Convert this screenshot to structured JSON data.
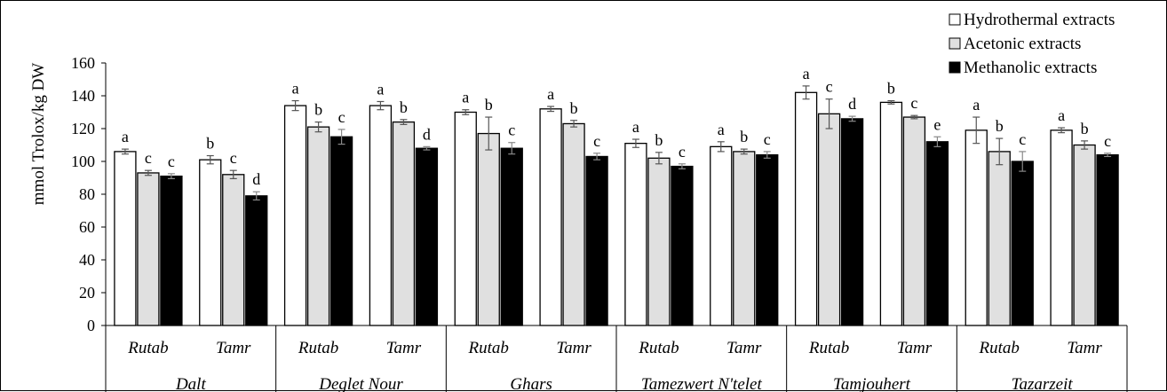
{
  "chart_data": {
    "type": "bar",
    "ylabel": "mmol Trolox/kg DW",
    "ylim": [
      0,
      160
    ],
    "yticks": [
      0,
      20,
      40,
      60,
      80,
      100,
      120,
      140,
      160
    ],
    "grid": false,
    "legend_position": "top-right",
    "groups": [
      {
        "name": "Dalt",
        "subcategories": [
          "Rutab",
          "Tamr"
        ]
      },
      {
        "name": "Deglet Nour",
        "subcategories": [
          "Rutab",
          "Tamr"
        ]
      },
      {
        "name": "Ghars",
        "subcategories": [
          "Rutab",
          "Tamr"
        ]
      },
      {
        "name": "Tamezwert N'telet",
        "subcategories": [
          "Rutab",
          "Tamr"
        ]
      },
      {
        "name": "Tamjouhert",
        "subcategories": [
          "Rutab",
          "Tamr"
        ]
      },
      {
        "name": "Tazarzeit",
        "subcategories": [
          "Rutab",
          "Tamr"
        ]
      }
    ],
    "series": [
      {
        "name": "Hydrothermal extracts",
        "color": "#ffffff",
        "values": [
          106,
          101,
          134,
          134,
          130,
          132,
          111,
          109,
          142,
          136,
          119,
          119
        ],
        "errors": [
          1.5,
          2.5,
          3,
          2.5,
          1.5,
          1.5,
          2.5,
          3,
          4,
          1,
          8,
          1.5
        ],
        "letters": [
          "a",
          "b",
          "a",
          "a",
          "a",
          "a",
          "a",
          "a",
          "a",
          "b",
          "a",
          "a"
        ]
      },
      {
        "name": "Acetonic extracts",
        "color": "#e0e0e0",
        "values": [
          93,
          92,
          121,
          124,
          117,
          123,
          102,
          106,
          129,
          127,
          106,
          110
        ],
        "errors": [
          1.5,
          2.5,
          3,
          1.5,
          10,
          2,
          3.5,
          1.5,
          9,
          1,
          8,
          2.5
        ],
        "letters": [
          "c",
          "c",
          "b",
          "b",
          "b",
          "b",
          "b",
          "b",
          "c",
          "c",
          "b",
          "b"
        ]
      },
      {
        "name": "Methanolic extracts",
        "color": "#000000",
        "values": [
          91,
          79,
          115,
          108,
          108,
          103,
          97,
          104,
          126,
          112,
          100,
          104
        ],
        "errors": [
          1.5,
          2.5,
          4.5,
          1,
          3.5,
          2,
          1.5,
          2,
          1.5,
          3,
          6,
          1
        ],
        "letters": [
          "c",
          "d",
          "c",
          "d",
          "c",
          "c",
          "c",
          "c",
          "d",
          "e",
          "c",
          "c"
        ]
      }
    ]
  }
}
